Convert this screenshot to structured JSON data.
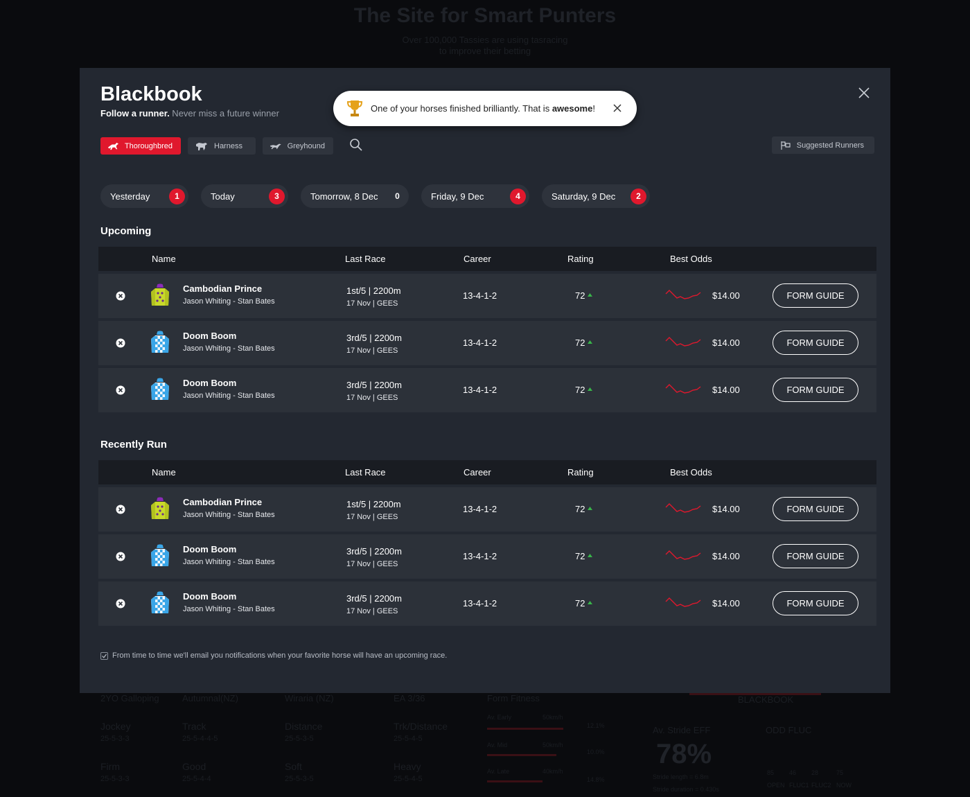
{
  "background": {
    "title": "The Site for Smart Punters",
    "subtitle_line1": "Over 100,000 Tassies are using tasracing",
    "subtitle_line2": "to improve their betting",
    "stats": {
      "row1": [
        "2YO Galloping",
        "Autumnal(NZ)",
        "Wiraria (NZ)",
        "EA 3/36",
        "Form Fitness"
      ],
      "row2": [
        {
          "label": "Jockey",
          "value": "25-5-3-3"
        },
        {
          "label": "Track",
          "value": "25-5-4-4-5"
        },
        {
          "label": "Distance",
          "value": "25-5-3-5"
        },
        {
          "label": "Trk/Distance",
          "value": "25-5-4-5"
        }
      ],
      "row3": [
        {
          "label": "Firm",
          "value": "25-5-3-3"
        },
        {
          "label": "Good",
          "value": "25-5-4-4"
        },
        {
          "label": "Soft",
          "value": "25-5-3-5"
        },
        {
          "label": "Heavy",
          "value": "25-5-4-5"
        }
      ],
      "speeds": [
        "Av. Early",
        "Av. Mid",
        "Av. Late"
      ],
      "speed_values": [
        "50km/h",
        "50km/h",
        "40km/h"
      ],
      "speed_pcts": [
        "12.1%",
        "10.0%",
        "14.8%"
      ],
      "blackbook_tab": "BLACKBOOK",
      "stride_label": "Av. Stride EFF",
      "stride_value": "78%",
      "stride_length": "Stride length = 6.8m",
      "stride_duration": "Stride duration = 0.430s",
      "odd_fluc": "ODD FLUC",
      "fluc_values": [
        "85",
        "46",
        "28",
        "75"
      ],
      "fluc_labels": [
        "OPEN",
        "FLUC1",
        "FLUC2",
        "NOW"
      ]
    }
  },
  "modal": {
    "title": "Blackbook",
    "subtitle_bold": "Follow a runner.",
    "subtitle_rest": " Never miss a future winner",
    "toast": {
      "message_pre": "One of your horses finished brilliantly. That is ",
      "message_bold": "awesome",
      "message_post": "!"
    },
    "types": [
      {
        "label": "Thoroughbred",
        "icon": "thoroughbred-icon",
        "active": true
      },
      {
        "label": "Harness",
        "icon": "harness-icon",
        "active": false
      },
      {
        "label": "Greyhound",
        "icon": "greyhound-icon",
        "active": false
      }
    ],
    "suggested_label": "Suggested Runners",
    "days": [
      {
        "label": "Yesterday",
        "count": "1"
      },
      {
        "label": "Today",
        "count": "3"
      },
      {
        "label": "Tomorrow, 8 Dec",
        "count": "0"
      },
      {
        "label": "Friday, 9 Dec",
        "count": "4"
      },
      {
        "label": "Saturday, 9 Dec",
        "count": "2"
      }
    ],
    "columns": {
      "name": "Name",
      "last_race": "Last Race",
      "career": "Career",
      "rating": "Rating",
      "best_odds": "Best Odds"
    },
    "upcoming": {
      "title": "Upcoming",
      "rows": [
        {
          "name": "Cambodian Prince",
          "people": "Jason Whiting - Stan Bates",
          "last_race": "1st/5 | 2200m",
          "last_race_meta": "17 Nov | GEES",
          "career": "13-4-1-2",
          "rating": "72",
          "odds": "$14.00",
          "silk": "yellow",
          "form_guide": "FORM GUIDE"
        },
        {
          "name": "Doom Boom",
          "people": "Jason Whiting - Stan Bates",
          "last_race": "3rd/5 | 2200m",
          "last_race_meta": "17 Nov | GEES",
          "career": "13-4-1-2",
          "rating": "72",
          "odds": "$14.00",
          "silk": "blue",
          "form_guide": "FORM GUIDE"
        },
        {
          "name": "Doom Boom",
          "people": "Jason Whiting - Stan Bates",
          "last_race": "3rd/5 | 2200m",
          "last_race_meta": "17 Nov | GEES",
          "career": "13-4-1-2",
          "rating": "72",
          "odds": "$14.00",
          "silk": "blue",
          "form_guide": "FORM GUIDE"
        }
      ]
    },
    "recent": {
      "title": "Recently Run",
      "rows": [
        {
          "name": "Cambodian Prince",
          "people": "Jason Whiting - Stan Bates",
          "last_race": "1st/5 | 2200m",
          "last_race_meta": "17 Nov | GEES",
          "career": "13-4-1-2",
          "rating": "72",
          "odds": "$14.00",
          "silk": "yellow",
          "form_guide": "FORM GUIDE"
        },
        {
          "name": "Doom Boom",
          "people": "Jason Whiting - Stan Bates",
          "last_race": "3rd/5 | 2200m",
          "last_race_meta": "17 Nov | GEES",
          "career": "13-4-1-2",
          "rating": "72",
          "odds": "$14.00",
          "silk": "blue",
          "form_guide": "FORM GUIDE"
        },
        {
          "name": "Doom Boom",
          "people": "Jason Whiting - Stan Bates",
          "last_race": "3rd/5 | 2200m",
          "last_race_meta": "17 Nov | GEES",
          "career": "13-4-1-2",
          "rating": "72",
          "odds": "$14.00",
          "silk": "blue",
          "form_guide": "FORM GUIDE"
        }
      ]
    },
    "notify_text": "From time to time we'll email you notifications when your favorite horse will have an upcoming race.",
    "colors": {
      "accent": "#e0182d",
      "modal_bg": "#232831",
      "row_bg": "#2c3139",
      "header_bg": "#191c22",
      "rating_up": "#39b54a"
    }
  }
}
